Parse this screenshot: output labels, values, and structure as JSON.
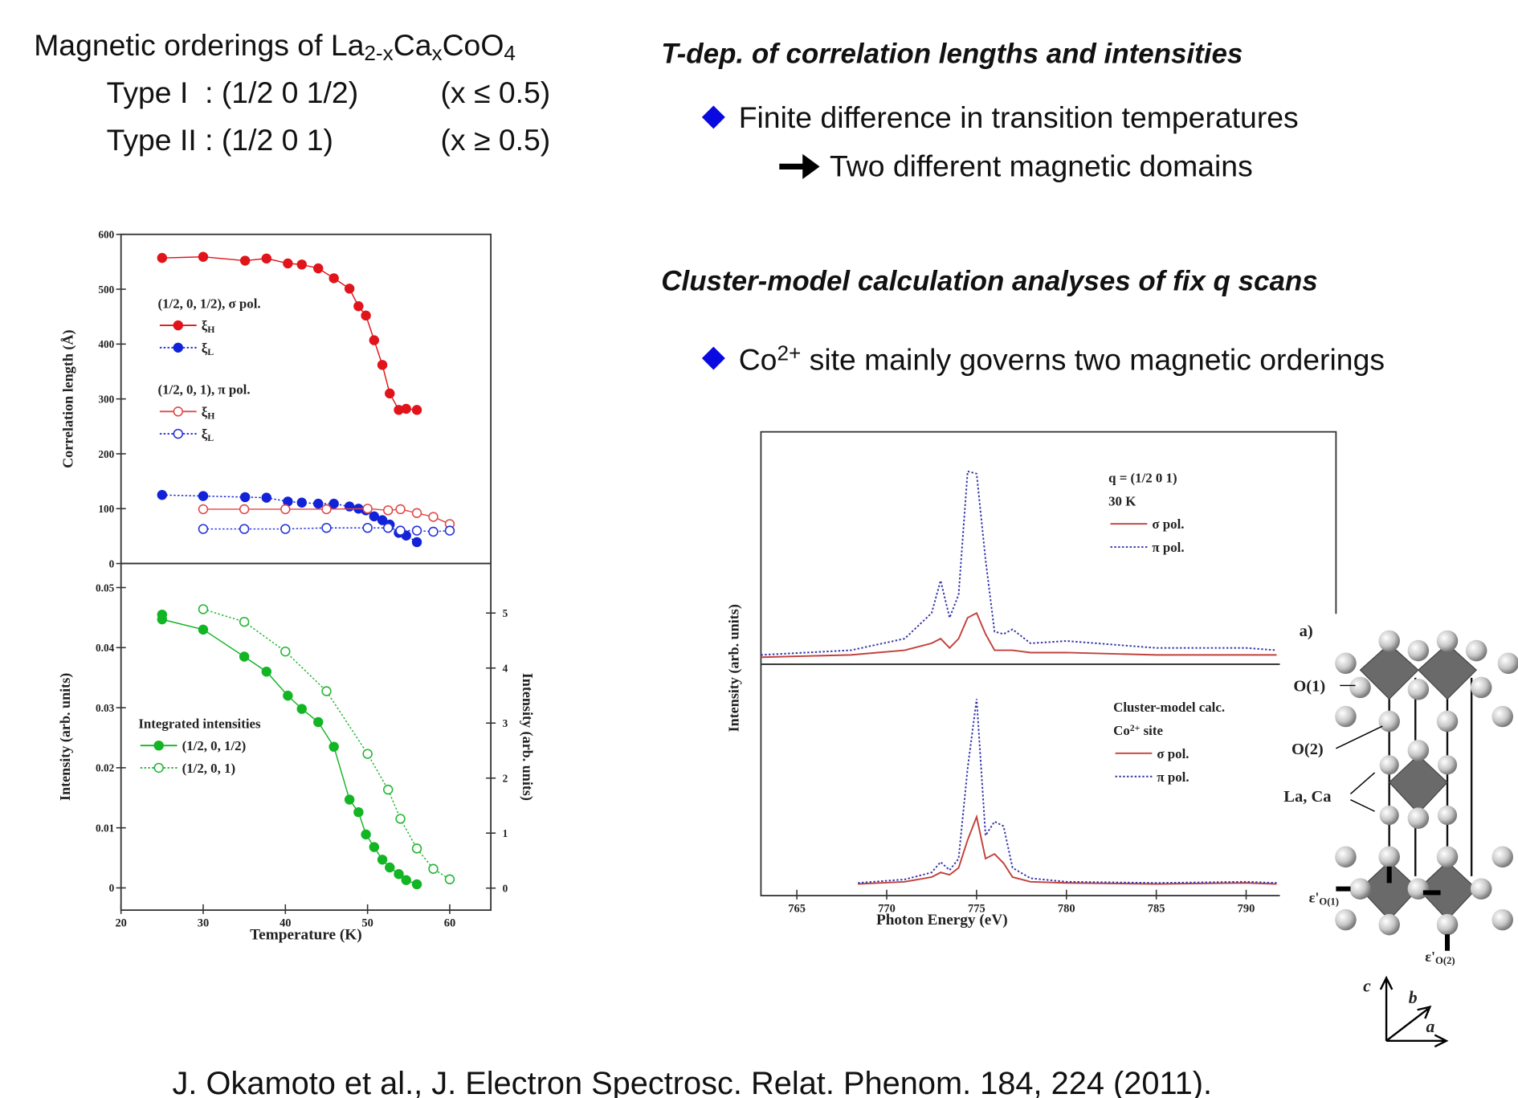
{
  "title": [
    "Magnetic orderings of La",
    {
      "sub": "2-x"
    },
    "Ca",
    {
      "sub": "x"
    },
    "CoO",
    {
      "sub": "4"
    }
  ],
  "orderings": [
    {
      "type": "Type I  : (1/2 0 1/2)",
      "range": "(x ≤ 0.5)"
    },
    {
      "type": "Type II : (1/2 0 1)",
      "range": "(x ≥ 0.5)"
    }
  ],
  "sections": [
    {
      "heading": "T-dep. of correlation lengths and intensities",
      "bullet": "Finite difference in transition temperatures",
      "result": "Two different magnetic domains"
    },
    {
      "heading": "Cluster-model calculation analyses of fix q scans",
      "bullet": [
        "Co",
        {
          "sup": "2+"
        },
        " site mainly governs two magnetic orderings"
      ]
    }
  ],
  "structure": {
    "panel": "a)",
    "labels": [
      "O(1)",
      "O(2)",
      "La, Ca"
    ],
    "eps1": [
      "ε'",
      {
        "sub": "O(1)"
      }
    ],
    "eps2": [
      "ε'",
      {
        "sub": "O(2)"
      }
    ],
    "axes": [
      "c",
      "b",
      "a"
    ]
  },
  "citation": "J. Okamoto et al., J. Electron Spectrosc. Relat. Phenom. 184, 224 (2011).",
  "chart_data": [
    {
      "type": "line",
      "ylabel": "Correlation length (Å)",
      "xlim": [
        20,
        65
      ],
      "ylim": [
        0,
        600
      ],
      "yticks": [
        0,
        100,
        200,
        300,
        400,
        500,
        600
      ],
      "legend_titles": [
        "(1/2, 0, 1/2), σ pol.",
        "(1/2, 0, 1), π pol."
      ],
      "series": [
        {
          "name": [
            "ξ",
            {
              "sub": "H"
            }
          ],
          "color": "#e0141a",
          "marker": "filled",
          "linestyle": "solid",
          "x": [
            25,
            30,
            35.1,
            37.7,
            40.3,
            42,
            44,
            45.9,
            47.8,
            48.9,
            49.8,
            50.8,
            51.8,
            52.7,
            53.8,
            54.7,
            56
          ],
          "values": [
            557,
            559,
            552,
            556,
            547,
            545,
            538,
            520,
            501,
            469,
            452,
            407,
            362,
            310,
            280,
            282,
            280
          ]
        },
        {
          "name": [
            "ξ",
            {
              "sub": "L"
            }
          ],
          "color": "#1222d8",
          "marker": "filled",
          "linestyle": "dotted",
          "x": [
            25,
            30,
            35.1,
            37.7,
            40.3,
            42,
            44,
            45.9,
            47.8,
            48.9,
            49.8,
            50.8,
            51.8,
            52.7,
            53.8,
            54.7,
            56
          ],
          "values": [
            125,
            123,
            121,
            120,
            113,
            111,
            109,
            109,
            104,
            100,
            97,
            86,
            79,
            71,
            56,
            51,
            39
          ]
        },
        {
          "name": [
            "ξ",
            {
              "sub": "H"
            }
          ],
          "color": "#e04848",
          "marker": "open",
          "linestyle": "solid",
          "x": [
            30,
            35,
            40,
            45,
            50,
            52.5,
            54,
            56,
            58,
            60
          ],
          "values": [
            99,
            99,
            99,
            99,
            100,
            97,
            99,
            92,
            85,
            72
          ]
        },
        {
          "name": [
            "ξ",
            {
              "sub": "L"
            }
          ],
          "color": "#2232d8",
          "marker": "open",
          "linestyle": "dotted",
          "x": [
            30,
            35,
            40,
            45,
            50,
            52.5,
            54,
            56,
            58,
            60
          ],
          "values": [
            63,
            63,
            63,
            65,
            65,
            65,
            60,
            60,
            58,
            60
          ]
        }
      ]
    },
    {
      "type": "line",
      "xlabel": "Temperature (K)",
      "ylabel": "Intensity (arb. units)",
      "y2label": "Intensity (arb. units)",
      "xlim": [
        20,
        65
      ],
      "xticks": [
        20,
        30,
        40,
        50,
        60
      ],
      "ylim": [
        -0.0037,
        0.054
      ],
      "yticks": [
        0,
        0.01,
        0.02,
        0.03,
        0.04,
        0.05
      ],
      "y2lim": [
        -0.4,
        5.9
      ],
      "y2ticks": [
        0,
        1,
        2,
        3,
        4,
        5
      ],
      "legend_titles": [
        "Integrated intensities"
      ],
      "series": [
        {
          "name": "(1/2, 0, 1/2)",
          "color": "#12b524",
          "marker": "filled",
          "linestyle": "solid",
          "x": [
            25,
            25,
            30,
            35,
            37.7,
            40.3,
            42,
            44,
            45.9,
            47.8,
            48.9,
            49.8,
            50.8,
            51.8,
            52.7,
            53.8,
            54.7,
            56
          ],
          "values": [
            0.0455,
            0.0447,
            0.043,
            0.0385,
            0.036,
            0.032,
            0.0298,
            0.0276,
            0.0235,
            0.0147,
            0.0126,
            0.0089,
            0.0068,
            0.0047,
            0.0034,
            0.0023,
            0.0013,
            0.0006
          ]
        },
        {
          "name": "(1/2, 0, 1)",
          "color": "#22b532",
          "marker": "open",
          "linestyle": "dotted",
          "axis": "y2",
          "x": [
            30,
            35,
            40,
            45,
            50,
            52.5,
            54,
            56,
            58,
            60
          ],
          "values": [
            5.07,
            4.84,
            4.3,
            3.58,
            2.44,
            1.79,
            1.26,
            0.72,
            0.35,
            0.16
          ]
        }
      ]
    },
    {
      "type": "line",
      "ylabel": "Intensity (arb. units)",
      "xlim": [
        763,
        795
      ],
      "ylim": [
        0,
        10
      ],
      "legend_titles": [
        "q = (1/2 0 1)",
        "30 K"
      ],
      "series": [
        {
          "name": "σ pol.",
          "color": "#c2403c",
          "marker": "none",
          "linestyle": "solid",
          "x": [
            763,
            768,
            771,
            772.5,
            773,
            773.5,
            774,
            774.5,
            775,
            775.5,
            776,
            776.5,
            777,
            778,
            780,
            785,
            790,
            791.7
          ],
          "values": [
            0.3,
            0.4,
            0.6,
            0.9,
            1.1,
            0.7,
            1.1,
            2.0,
            2.2,
            1.3,
            0.6,
            0.6,
            0.6,
            0.5,
            0.5,
            0.4,
            0.4,
            0.4
          ]
        },
        {
          "name": "π pol.",
          "color": "#3535a8",
          "marker": "none",
          "linestyle": "dotted",
          "x": [
            763,
            768,
            771,
            772.5,
            773,
            773.5,
            774,
            774.5,
            775,
            775.5,
            776,
            776.5,
            777,
            778,
            780,
            785,
            790,
            791.7
          ],
          "values": [
            0.4,
            0.6,
            1.1,
            2.2,
            3.6,
            2.0,
            3.0,
            8.3,
            8.2,
            4.5,
            1.4,
            1.3,
            1.5,
            0.9,
            1.0,
            0.7,
            0.7,
            0.6
          ]
        }
      ]
    },
    {
      "type": "line",
      "xlabel": "Photon Energy (eV)",
      "xlim": [
        763,
        795
      ],
      "xticks": [
        765,
        770,
        775,
        780,
        785,
        790
      ],
      "ylim": [
        0,
        10
      ],
      "legend_titles": [
        "Cluster-model calc.",
        [
          "Co",
          {
            "sup": "2+"
          },
          " site"
        ]
      ],
      "series": [
        {
          "name": "σ pol.",
          "color": "#c2403c",
          "marker": "none",
          "linestyle": "solid",
          "x": [
            768.4,
            771,
            772.5,
            773,
            773.5,
            774,
            774.5,
            775,
            775.5,
            776,
            776.5,
            777,
            778,
            780,
            785,
            790,
            791.7
          ],
          "values": [
            0.5,
            0.6,
            0.8,
            1.0,
            0.9,
            1.2,
            2.4,
            3.4,
            1.6,
            1.8,
            1.4,
            0.8,
            0.6,
            0.55,
            0.5,
            0.55,
            0.5
          ]
        },
        {
          "name": "π pol.",
          "color": "#3535a8",
          "marker": "none",
          "linestyle": "dotted",
          "x": [
            768.4,
            771,
            772.5,
            773,
            773.5,
            774,
            774.5,
            775,
            775.5,
            776,
            776.5,
            777,
            778,
            780,
            785,
            790,
            791.7
          ],
          "values": [
            0.55,
            0.7,
            1.0,
            1.45,
            1.1,
            1.6,
            5.5,
            8.5,
            2.6,
            3.2,
            3.0,
            1.2,
            0.75,
            0.6,
            0.55,
            0.6,
            0.55
          ]
        }
      ]
    }
  ]
}
